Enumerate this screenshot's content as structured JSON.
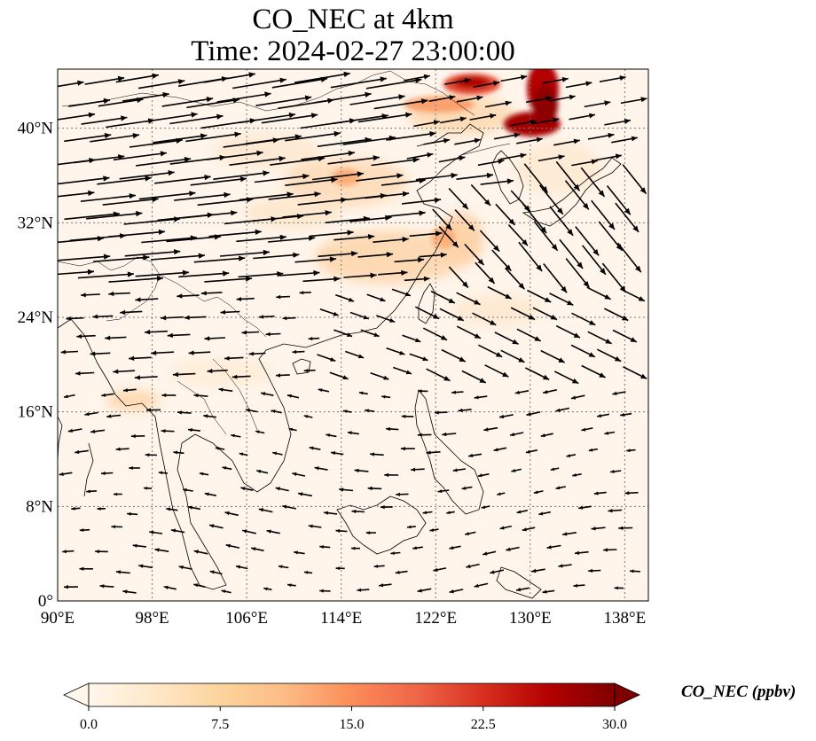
{
  "title": {
    "line1": "CO_NEC at 4km",
    "line2": "Time: 2024-02-27 23:00:00"
  },
  "map": {
    "lon_range": [
      90,
      140
    ],
    "lat_range": [
      0,
      45
    ],
    "lon_ticks": [
      "90°E",
      "98°E",
      "106°E",
      "114°E",
      "122°E",
      "130°E",
      "138°E"
    ],
    "lat_ticks": [
      "0°",
      "8°N",
      "16°N",
      "24°N",
      "32°N",
      "40°N"
    ],
    "gridlines": true,
    "background_color": "#fff5eb",
    "coastline_color": "#000000",
    "vector_color": "#000000",
    "colormap": "OrRd"
  },
  "colorbar": {
    "label": "CO_NEC (ppbv)",
    "min": 0.0,
    "max": 30.0,
    "ticks": [
      "0.0",
      "7.5",
      "15.0",
      "22.5",
      "30.0"
    ],
    "extend": "both",
    "colors": [
      "#fff7ec",
      "#fee8c8",
      "#fdd49e",
      "#fdbb84",
      "#fc8d59",
      "#ef6548",
      "#d7301f",
      "#b30000",
      "#7f0000"
    ]
  }
}
